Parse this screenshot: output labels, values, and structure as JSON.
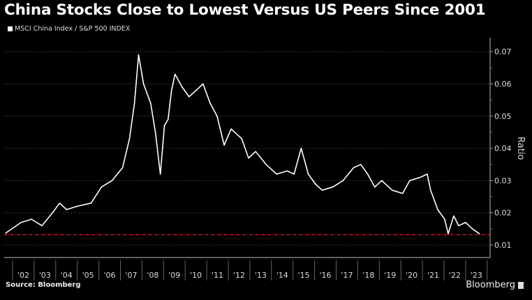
{
  "chart_data": {
    "type": "line",
    "title": "China Stocks Close to Lowest Versus US Peers Since 2001",
    "legend": [
      {
        "label": "MSCI China Index / S&P 500 INDEX",
        "color": "#ffffff"
      }
    ],
    "legend_placement": "top-left",
    "xlabel": "",
    "ylabel": "Ratio",
    "xlim": [
      2001.6,
      2023.95
    ],
    "ylim": [
      0.006,
      0.074
    ],
    "yticks": [
      {
        "value": 0.07,
        "label": "0.07"
      },
      {
        "value": 0.06,
        "label": "0.06"
      },
      {
        "value": 0.05,
        "label": "0.05"
      },
      {
        "value": 0.04,
        "label": "0.04"
      },
      {
        "value": 0.03,
        "label": "0.03"
      },
      {
        "value": 0.02,
        "label": "0.02"
      },
      {
        "value": 0.01,
        "label": "0.01"
      }
    ],
    "xtick_labels": [
      "'02",
      "'03",
      "'04",
      "'05",
      "'06",
      "'07",
      "'08",
      "'09",
      "'10",
      "'11",
      "'12",
      "'13",
      "'14",
      "'15",
      "'16",
      "'17",
      "'18",
      "'19",
      "'20",
      "'21",
      "'22",
      "'23"
    ],
    "grid": "horizontal dotted",
    "reference_line": {
      "value": 0.0132,
      "color": "#e0122b",
      "style": "dash-dot"
    },
    "series": [
      {
        "name": "MSCI China Index / S&P 500 INDEX",
        "color": "#ffffff",
        "points": [
          [
            2001.68,
            0.0137
          ],
          [
            2002.39,
            0.017
          ],
          [
            2002.88,
            0.018
          ],
          [
            2003.36,
            0.016
          ],
          [
            2003.85,
            0.02
          ],
          [
            2004.18,
            0.023
          ],
          [
            2004.5,
            0.021
          ],
          [
            2004.99,
            0.022
          ],
          [
            2005.64,
            0.023
          ],
          [
            2006.12,
            0.028
          ],
          [
            2006.61,
            0.03
          ],
          [
            2007.1,
            0.034
          ],
          [
            2007.42,
            0.043
          ],
          [
            2007.65,
            0.054
          ],
          [
            2007.84,
            0.069
          ],
          [
            2008.07,
            0.06
          ],
          [
            2008.4,
            0.054
          ],
          [
            2008.62,
            0.045
          ],
          [
            2008.85,
            0.032
          ],
          [
            2009.04,
            0.047
          ],
          [
            2009.21,
            0.049
          ],
          [
            2009.37,
            0.058
          ],
          [
            2009.53,
            0.063
          ],
          [
            2009.86,
            0.059
          ],
          [
            2010.18,
            0.056
          ],
          [
            2010.51,
            0.058
          ],
          [
            2010.83,
            0.06
          ],
          [
            2011.16,
            0.054
          ],
          [
            2011.48,
            0.05
          ],
          [
            2011.81,
            0.041
          ],
          [
            2012.13,
            0.046
          ],
          [
            2012.62,
            0.043
          ],
          [
            2012.94,
            0.037
          ],
          [
            2013.27,
            0.039
          ],
          [
            2013.75,
            0.035
          ],
          [
            2014.24,
            0.032
          ],
          [
            2014.73,
            0.033
          ],
          [
            2015.05,
            0.032
          ],
          [
            2015.38,
            0.04
          ],
          [
            2015.71,
            0.032
          ],
          [
            2016.03,
            0.029
          ],
          [
            2016.35,
            0.027
          ],
          [
            2016.84,
            0.028
          ],
          [
            2017.32,
            0.03
          ],
          [
            2017.81,
            0.034
          ],
          [
            2018.14,
            0.035
          ],
          [
            2018.46,
            0.032
          ],
          [
            2018.79,
            0.028
          ],
          [
            2019.11,
            0.03
          ],
          [
            2019.6,
            0.027
          ],
          [
            2020.08,
            0.026
          ],
          [
            2020.41,
            0.03
          ],
          [
            2020.9,
            0.031
          ],
          [
            2021.22,
            0.032
          ],
          [
            2021.38,
            0.027
          ],
          [
            2021.71,
            0.021
          ],
          [
            2022.03,
            0.018
          ],
          [
            2022.19,
            0.0135
          ],
          [
            2022.45,
            0.019
          ],
          [
            2022.68,
            0.016
          ],
          [
            2023.0,
            0.017
          ],
          [
            2023.32,
            0.015
          ],
          [
            2023.64,
            0.0135
          ]
        ]
      }
    ]
  },
  "footer": {
    "source": "Source: Bloomberg",
    "brand": "Bloomberg"
  }
}
